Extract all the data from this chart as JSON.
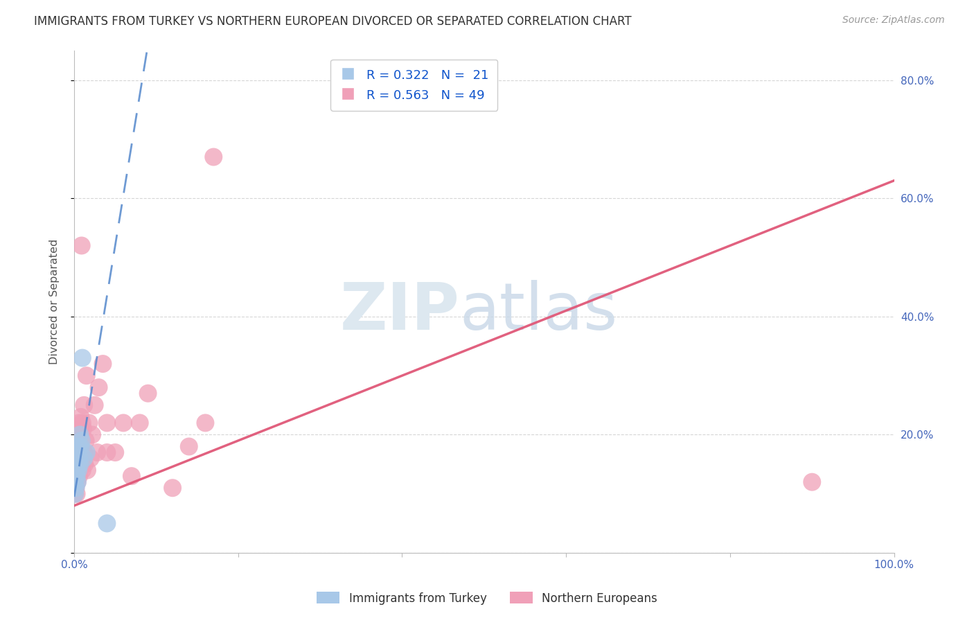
{
  "title": "IMMIGRANTS FROM TURKEY VS NORTHERN EUROPEAN DIVORCED OR SEPARATED CORRELATION CHART",
  "source": "Source: ZipAtlas.com",
  "ylabel": "Divorced or Separated",
  "xlim": [
    0,
    1.0
  ],
  "ylim": [
    0,
    0.85
  ],
  "turkey_color": "#a8c8e8",
  "northern_color": "#f0a0b8",
  "trend_turkey_color": "#5588cc",
  "trend_northern_color": "#e05878",
  "background_color": "#ffffff",
  "grid_color": "#cccccc",
  "axis_label_color": "#4466bb",
  "turkey_x": [
    0.001,
    0.001,
    0.002,
    0.002,
    0.002,
    0.003,
    0.003,
    0.003,
    0.004,
    0.004,
    0.005,
    0.005,
    0.006,
    0.007,
    0.007,
    0.008,
    0.009,
    0.01,
    0.012,
    0.015,
    0.04
  ],
  "turkey_y": [
    0.1,
    0.12,
    0.11,
    0.14,
    0.16,
    0.13,
    0.14,
    0.17,
    0.12,
    0.15,
    0.14,
    0.18,
    0.16,
    0.15,
    0.2,
    0.18,
    0.19,
    0.33,
    0.16,
    0.17,
    0.05
  ],
  "northern_x": [
    0.001,
    0.001,
    0.001,
    0.002,
    0.002,
    0.002,
    0.003,
    0.003,
    0.003,
    0.004,
    0.004,
    0.005,
    0.005,
    0.006,
    0.006,
    0.007,
    0.007,
    0.008,
    0.008,
    0.009,
    0.009,
    0.01,
    0.01,
    0.011,
    0.012,
    0.012,
    0.013,
    0.014,
    0.015,
    0.016,
    0.018,
    0.02,
    0.022,
    0.025,
    0.028,
    0.03,
    0.035,
    0.04,
    0.04,
    0.05,
    0.06,
    0.07,
    0.08,
    0.09,
    0.12,
    0.14,
    0.16,
    0.17,
    0.9
  ],
  "northern_y": [
    0.1,
    0.12,
    0.14,
    0.11,
    0.13,
    0.16,
    0.1,
    0.15,
    0.18,
    0.12,
    0.2,
    0.14,
    0.19,
    0.13,
    0.22,
    0.15,
    0.21,
    0.18,
    0.23,
    0.16,
    0.52,
    0.14,
    0.22,
    0.21,
    0.17,
    0.25,
    0.15,
    0.19,
    0.3,
    0.14,
    0.22,
    0.16,
    0.2,
    0.25,
    0.17,
    0.28,
    0.32,
    0.17,
    0.22,
    0.17,
    0.22,
    0.13,
    0.22,
    0.27,
    0.11,
    0.18,
    0.22,
    0.67,
    0.12
  ],
  "trend_turkey_intercept": 0.095,
  "trend_turkey_slope": 8.5,
  "trend_northern_intercept": 0.08,
  "trend_northern_slope": 0.55
}
